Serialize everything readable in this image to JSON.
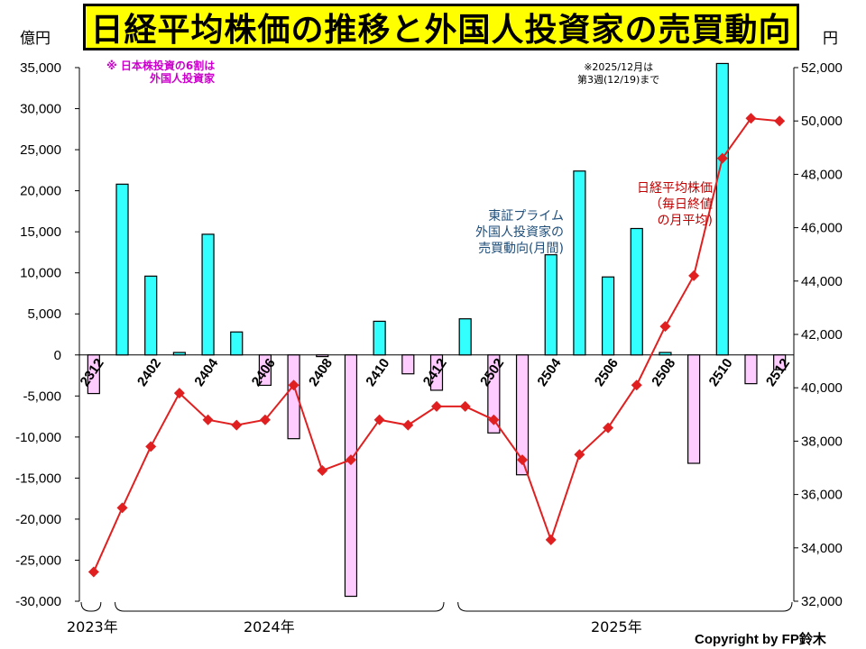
{
  "title": "日経平均株価の推移と外国人投資家の売買動向",
  "left_unit": "億円",
  "right_unit": "円",
  "note_left": "※ 日本株投資の6割は\n外国人投資家",
  "note_right": "※2025/12月は\n第3週(12/19)まで",
  "label_bar": "東証プライム\n外国人投資家の\n売買動向(月間)",
  "label_line": "日経平均株価\n（毎日終値\nの月平均)",
  "year_labels": [
    "2023年",
    "2024年",
    "2025年"
  ],
  "copyright": "Copyright by FP鈴木",
  "colors": {
    "positive_bar": "#33ffff",
    "negative_bar": "#ffccff",
    "line": "#e02020",
    "bar_border": "#000000"
  },
  "chart_data": {
    "type": "bar+line",
    "categories": [
      "2312",
      "2401",
      "2402",
      "2403",
      "2404",
      "2405",
      "2406",
      "2407",
      "2408",
      "2409",
      "2410",
      "2411",
      "2412",
      "2501",
      "2502",
      "2503",
      "2504",
      "2505",
      "2506",
      "2507",
      "2508",
      "2509",
      "2510",
      "2511",
      "2512"
    ],
    "category_labels_shown": [
      "2312",
      "2402",
      "2404",
      "2406",
      "2408",
      "2410",
      "2412",
      "2502",
      "2504",
      "2506",
      "2508",
      "2510",
      "2512"
    ],
    "left_axis": {
      "min": -30000,
      "max": 35000,
      "ticks": [
        -30000,
        -25000,
        -20000,
        -15000,
        -10000,
        -5000,
        0,
        5000,
        10000,
        15000,
        20000,
        25000,
        30000,
        35000
      ]
    },
    "right_axis": {
      "min": 32000,
      "max": 52000,
      "ticks": [
        32000,
        34000,
        36000,
        38000,
        40000,
        42000,
        44000,
        46000,
        48000,
        50000,
        52000
      ]
    },
    "series": [
      {
        "name": "東証プライム外国人投資家の売買動向(月間)",
        "type": "bar",
        "axis": "left",
        "values": [
          -4700,
          20800,
          9600,
          300,
          14700,
          2800,
          -3700,
          -10200,
          -200,
          -29400,
          4100,
          -2300,
          -4300,
          4400,
          -9500,
          -14600,
          12200,
          22400,
          9500,
          15400,
          300,
          -13200,
          35500,
          -3500,
          -1800
        ]
      },
      {
        "name": "日経平均株価（毎日終値の月平均)",
        "type": "line",
        "axis": "right",
        "values": [
          33100,
          35500,
          37800,
          39800,
          38800,
          38600,
          38800,
          40100,
          36900,
          37300,
          38800,
          38600,
          39300,
          39300,
          38800,
          37300,
          34300,
          37500,
          38500,
          40100,
          42300,
          44200,
          48600,
          50100,
          50000
        ]
      }
    ]
  }
}
